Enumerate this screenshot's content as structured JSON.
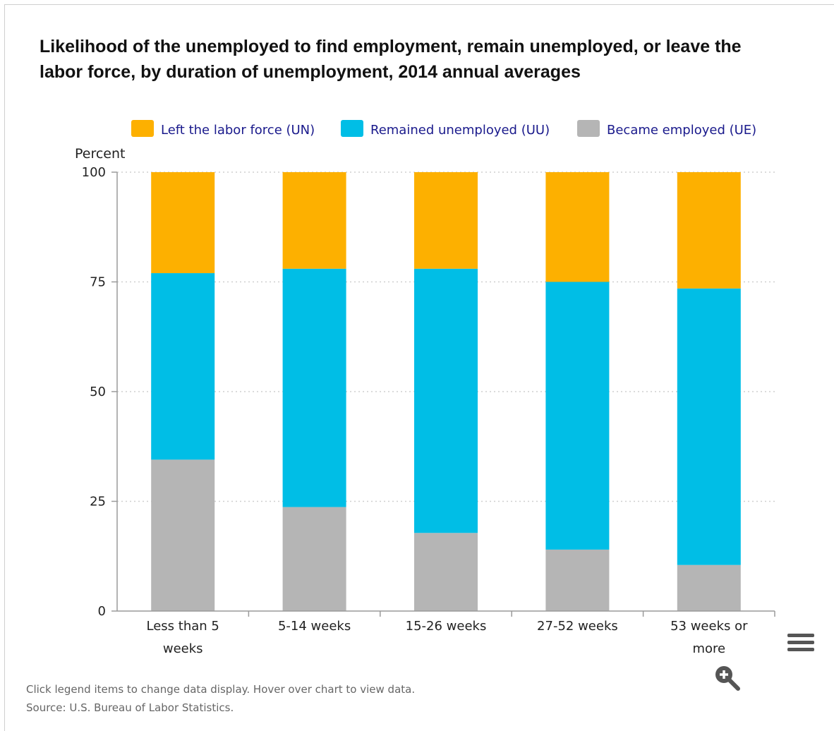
{
  "chart_data": {
    "type": "bar",
    "stacked": true,
    "title": "Likelihood of the unemployed to find employment, remain unemployed, or leave the labor force, by duration of unemployment, 2014 annual averages",
    "ylabel": "Percent",
    "ylim": [
      0,
      100
    ],
    "yticks": [
      0,
      25,
      50,
      75,
      100
    ],
    "grid": true,
    "legend_position": "top-right",
    "categories": [
      "Less than 5 weeks",
      "5-14 weeks",
      "15-26 weeks",
      "27-52 weeks",
      "53 weeks or more"
    ],
    "category_lines": [
      [
        "Less than 5",
        "weeks"
      ],
      [
        "5-14 weeks"
      ],
      [
        "15-26 weeks"
      ],
      [
        "27-52 weeks"
      ],
      [
        "53 weeks or",
        "more"
      ]
    ],
    "series": [
      {
        "name": "Left the labor force (UN)",
        "color": "#fdb000",
        "values": [
          23,
          22,
          22,
          25,
          26.5
        ]
      },
      {
        "name": "Remained unemployed (UU)",
        "color": "#00bee6",
        "values": [
          42.5,
          54.3,
          60.2,
          61,
          63
        ]
      },
      {
        "name": "Became employed (UE)",
        "color": "#b5b5b5",
        "values": [
          34.5,
          23.7,
          17.8,
          14,
          10.5
        ]
      }
    ],
    "stack_order_bottom_to_top": [
      "Became employed (UE)",
      "Remained unemployed (UU)",
      "Left the labor force (UN)"
    ]
  },
  "footer": {
    "note": "Click legend items to change data display. Hover over chart to view data.",
    "source": "Source: U.S. Bureau of Labor Statistics."
  },
  "icons": {
    "menu": "hamburger-menu-icon",
    "zoom": "zoom-in-icon"
  }
}
